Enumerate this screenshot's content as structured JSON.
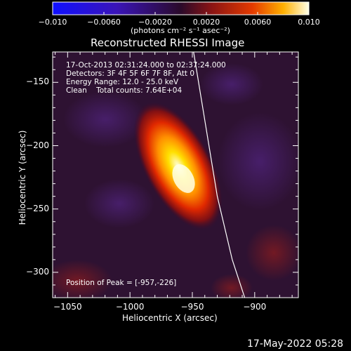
{
  "chart_data": {
    "type": "heatmap",
    "title": "Reconstructed RHESSI Image",
    "xlabel": "Heliocentric X (arcsec)",
    "ylabel": "Heliocentric Y (arcsec)",
    "xlim": [
      -1062,
      -865
    ],
    "ylim": [
      -320,
      -126
    ],
    "xticks": [
      -1050,
      -1000,
      -950,
      -900
    ],
    "xtick_labels": [
      "−1050",
      "−1000",
      "−950",
      "−900"
    ],
    "yticks": [
      -150,
      -200,
      -250,
      -300
    ],
    "ytick_labels": [
      "−150",
      "−200",
      "−250",
      "−300"
    ],
    "colorbar": {
      "range": [
        -0.01,
        0.01
      ],
      "ticks": [
        -0.01,
        -0.006,
        -0.002,
        0.002,
        0.006,
        0.01
      ],
      "tick_labels": [
        "−0.010",
        "−0.0060",
        "−0.0020",
        "0.0020",
        "0.0060",
        "0.010"
      ],
      "unit_label": "(photons cm⁻² s⁻¹ asec⁻²)"
    },
    "source_peak": {
      "x": -957,
      "y": -226,
      "value": 0.01
    },
    "info_lines": [
      "17-Oct-2013 02:31:24.000 to 02:37:24.000",
      "Detectors: 3F 4F 5F 6F 7F 8F, Att 0",
      "Energy Range: 12.0 - 25.0 keV",
      "Clean    Total counts: 7.64E+04"
    ],
    "peak_label": "Position of Peak = [-957,-226]",
    "limb_points": [
      [
        -949,
        -126
      ],
      [
        -940,
        -180
      ],
      [
        -930,
        -240
      ],
      [
        -918,
        -290
      ],
      [
        -908,
        -320
      ]
    ]
  },
  "footer": {
    "date": "17-May-2022 05:28"
  }
}
